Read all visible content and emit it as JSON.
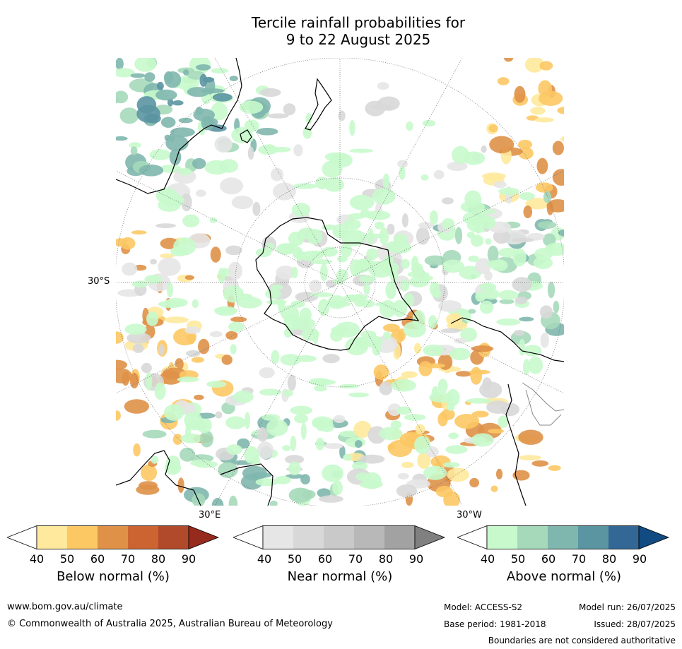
{
  "title": {
    "line1": "Tercile rainfall probabilities for",
    "line2": "9 to 22 August 2025"
  },
  "map": {
    "lat_label": "30°S",
    "lon_labels": {
      "east": "30°E",
      "west": "30°W"
    },
    "colors": {
      "ocean_base": "#ffffff",
      "coast": "#000000",
      "grid": "#666666"
    }
  },
  "colorbars": [
    {
      "id": "below",
      "label": "Below normal (%)",
      "ticks": [
        "40",
        "50",
        "60",
        "70",
        "80",
        "90"
      ],
      "colors": [
        "#ffffff",
        "#fee99c",
        "#fcc864",
        "#df9148",
        "#cc6432",
        "#b04a2a",
        "#962a1c"
      ]
    },
    {
      "id": "near",
      "label": "Near normal (%)",
      "ticks": [
        "40",
        "50",
        "60",
        "70",
        "80",
        "90"
      ],
      "colors": [
        "#ffffff",
        "#e6e6e6",
        "#d8d8d8",
        "#c9c9c9",
        "#b8b8b8",
        "#a2a2a2",
        "#808080"
      ]
    },
    {
      "id": "above",
      "label": "Above normal (%)",
      "ticks": [
        "40",
        "50",
        "60",
        "70",
        "80",
        "90"
      ],
      "colors": [
        "#ffffff",
        "#c8f9cc",
        "#a6d9ba",
        "#7fb7ae",
        "#5b95a2",
        "#336796",
        "#124a82"
      ]
    }
  ],
  "footer": {
    "site": "www.bom.gov.au/climate",
    "copyright": "© Commonwealth of Australia 2025, Australian Bureau of Meteorology",
    "model": "Model: ACCESS-S2",
    "model_run": "Model run: 26/07/2025",
    "base_period": "Base period: 1981-2018",
    "issued": "Issued: 28/07/2025",
    "disclaimer": "Boundaries are not considered authoritative"
  }
}
